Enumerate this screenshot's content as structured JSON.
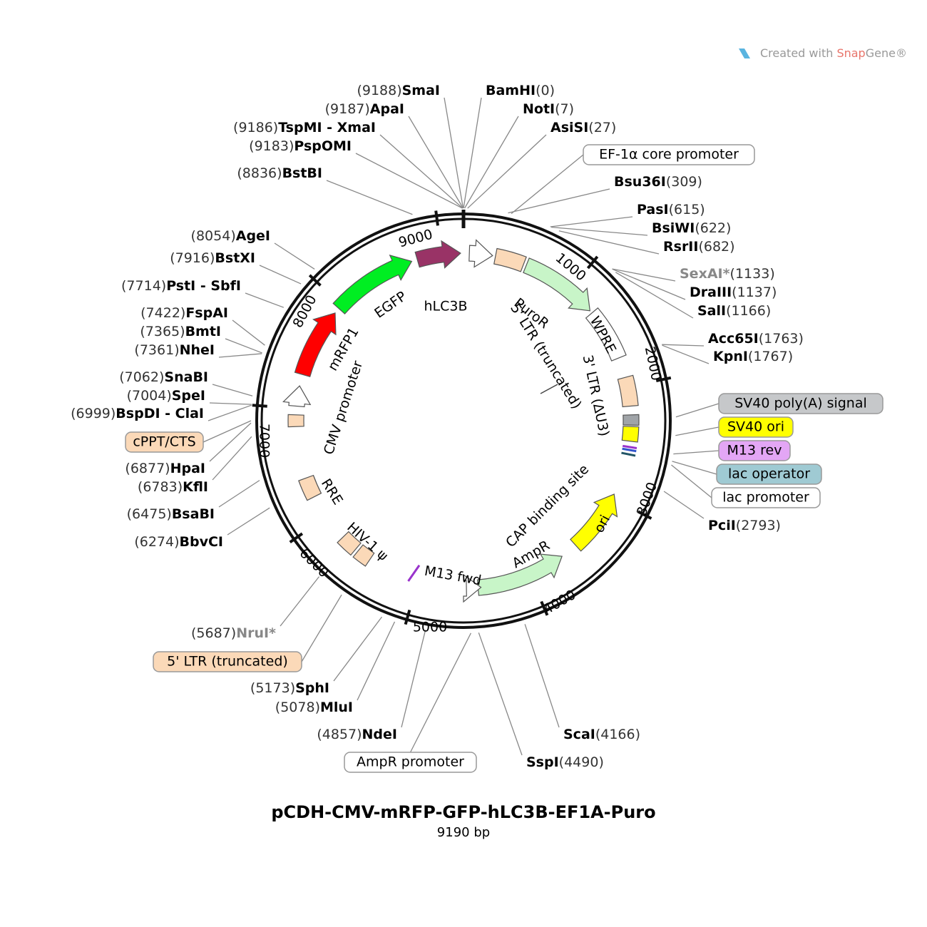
{
  "watermark": {
    "prefix": "Created with",
    "brand_snap": "Snap",
    "brand_gene": "Gene®"
  },
  "title": "pCDH-CMV-mRFP-GFP-hLC3B-EF1A-Puro",
  "size": "9190 bp",
  "sites": [
    {
      "name": "SmaI",
      "position": "(9188)"
    },
    {
      "name": "ApaI",
      "position": "(9187)"
    },
    {
      "name": "TspMI - XmaI",
      "position": "(9186)"
    },
    {
      "name": "PspOMI",
      "position": "(9183)"
    },
    {
      "name": "BstBI",
      "position": "(8836)"
    },
    {
      "name": "AgeI",
      "position": "(8054)"
    },
    {
      "name": "BstXI",
      "position": "(7916)"
    },
    {
      "name": "PstI - SbfI",
      "position": "(7714)"
    },
    {
      "name": "FspAI",
      "position": "(7422)"
    },
    {
      "name": "BmtI",
      "position": "(7365)"
    },
    {
      "name": "NheI",
      "position": "(7361)"
    },
    {
      "name": "SnaBI",
      "position": "(7062)"
    },
    {
      "name": "SpeI",
      "position": "(7004)"
    },
    {
      "name": "BspDI - ClaI",
      "position": "(6999)"
    },
    {
      "name": "HpaI",
      "position": "(6877)"
    },
    {
      "name": "KflI",
      "position": "(6783)"
    },
    {
      "name": "BsaBI",
      "position": "(6475)"
    },
    {
      "name": "BbvCI",
      "position": "(6274)"
    },
    {
      "name": "NruI*",
      "position": "(5687)",
      "color": "#888888"
    },
    {
      "name": "SphI",
      "position": "(5173)"
    },
    {
      "name": "MluI",
      "position": "(5078)"
    },
    {
      "name": "NdeI",
      "position": "(4857)"
    },
    {
      "name": "BamHI",
      "position": "(0)"
    },
    {
      "name": "NotI",
      "position": "(7)"
    },
    {
      "name": "AsiSI",
      "position": "(27)"
    },
    {
      "name": "Bsu36I",
      "position": "(309)"
    },
    {
      "name": "PasI",
      "position": "(615)"
    },
    {
      "name": "BsiWI",
      "position": "(622)"
    },
    {
      "name": "RsrII",
      "position": "(682)"
    },
    {
      "name": "SexAI*",
      "position": "(1133)",
      "color": "#888888"
    },
    {
      "name": "DraIII",
      "position": "(1137)"
    },
    {
      "name": "SalI",
      "position": "(1166)"
    },
    {
      "name": "Acc65I",
      "position": "(1763)"
    },
    {
      "name": "KpnI",
      "position": "(1767)"
    },
    {
      "name": "PciI",
      "position": "(2793)"
    },
    {
      "name": "ScaI",
      "position": "(4166)"
    },
    {
      "name": "SspI",
      "position": "(4490)"
    }
  ],
  "boxed_features": [
    {
      "label": "EF-1α core promoter",
      "color": "#ffffff"
    },
    {
      "label": "SV40 poly(A) signal",
      "color": "#c6c8ca"
    },
    {
      "label": "SV40 ori",
      "color": "#ffff00"
    },
    {
      "label": "M13 rev",
      "color": "#e3a6f5"
    },
    {
      "label": "lac operator",
      "color": "#9fcad3"
    },
    {
      "label": "lac promoter",
      "color": "#ffffff"
    },
    {
      "label": "cPPT/CTS",
      "color": "#fbd9b8"
    },
    {
      "label": "5' LTR (truncated)",
      "color": "#fbd9b8"
    },
    {
      "label": "AmpR promoter",
      "color": "#ffffff"
    }
  ],
  "feature_labels": [
    "mRFP1",
    "EGFP",
    "hLC3B",
    "PuroR",
    "5' LTR (truncated)",
    "WPRE",
    "3' LTR (ΔU3)",
    "CMV promoter",
    "RRE",
    "HIV-1 ψ",
    "M13 fwd",
    "AmpR",
    "CAP binding site",
    "ori"
  ],
  "ring_ticks": [
    "1000",
    "2000",
    "3000",
    "4000",
    "5000",
    "6000",
    "7000",
    "8000",
    "9000"
  ]
}
